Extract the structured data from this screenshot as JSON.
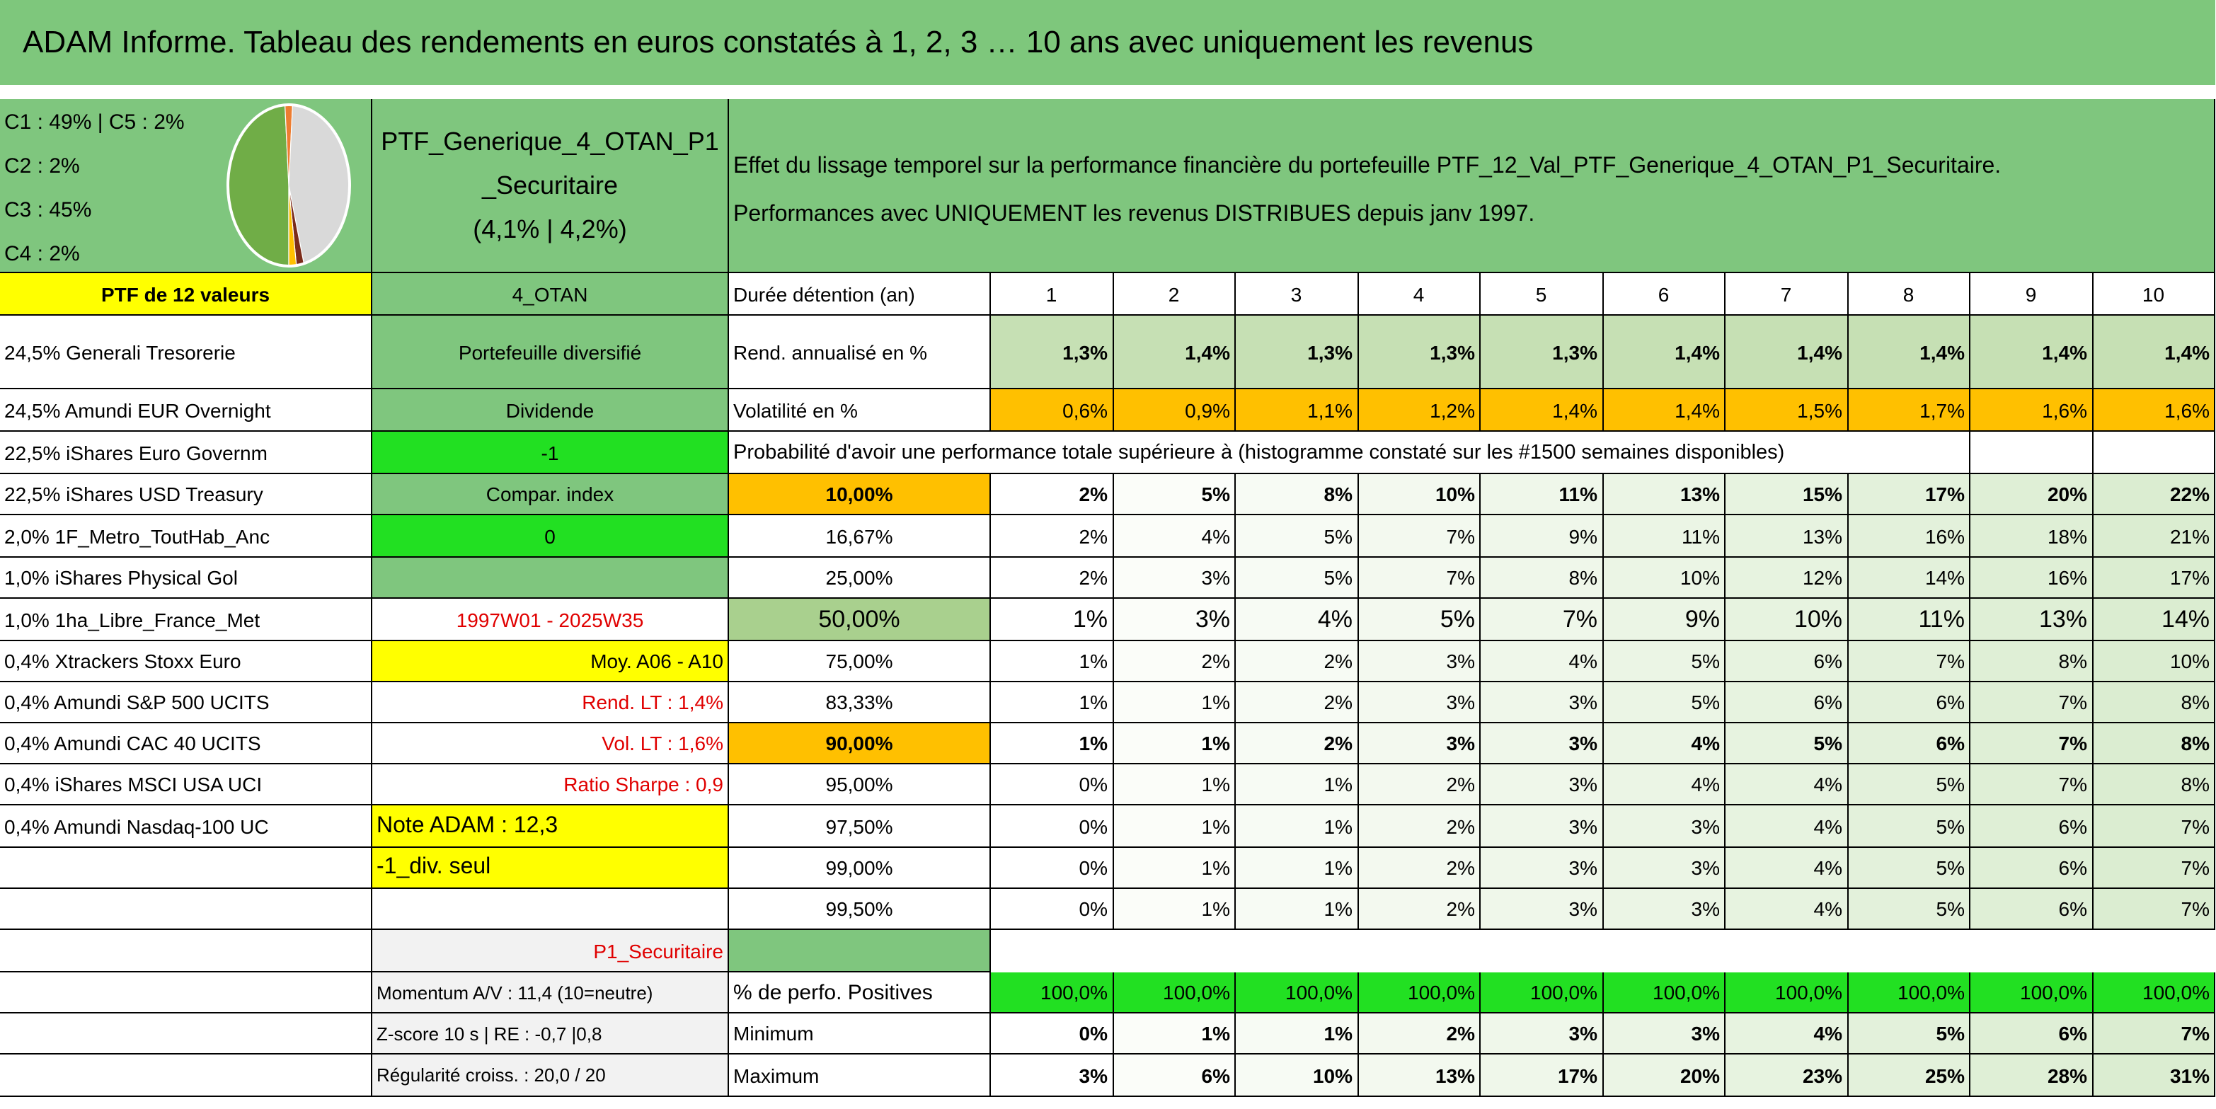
{
  "header": {
    "title": "ADAM Informe. Tableau des rendements en euros constatés à 1, 2, 3 … 10 ans avec uniquement les revenus"
  },
  "pie": {
    "legend": [
      "C1 : 49% | C5 : 2%",
      "C2 : 2%",
      "C3 : 45%",
      "C4 : 2%"
    ],
    "values": [
      49,
      2,
      45,
      2,
      2
    ],
    "colors": [
      "#70ad47",
      "#ed7d31",
      "#d9d9d9",
      "#7b2c1a",
      "#ffc000"
    ]
  },
  "portfolio": {
    "name_lines": [
      "PTF_Generique_4_OTAN_P1",
      "_Securitaire",
      "(4,1% | 4,2%)"
    ]
  },
  "description": [
    "Effet du lissage temporel sur la performance financière du portefeuille PTF_12_Val_PTF_Generique_4_OTAN_P1_Securitaire.",
    "Performances avec UNIQUEMENT les revenus DISTRIBUES depuis janv 1997."
  ],
  "table": {
    "rows": [
      [
        "PTF de 12 valeurs",
        "4_OTAN",
        "Durée détention (an)",
        "1",
        "2",
        "3",
        "4",
        "5",
        "6",
        "7",
        "8",
        "9",
        "10"
      ],
      [
        "24,5% Generali Tresorerie",
        "Portefeuille diversifié",
        "Rend. annualisé en %",
        "1,3%",
        "1,4%",
        "1,3%",
        "1,3%",
        "1,3%",
        "1,4%",
        "1,4%",
        "1,4%",
        "1,4%",
        "1,4%"
      ],
      [
        "24,5% Amundi EUR Overnight",
        "Dividende",
        "Volatilité en %",
        "0,6%",
        "0,9%",
        "1,1%",
        "1,2%",
        "1,4%",
        "1,4%",
        "1,5%",
        "1,7%",
        "1,6%",
        "1,6%"
      ],
      [
        "22,5% iShares Euro Governm",
        "-1",
        "Probabilité d'avoir une performance totale supérieure à (histogramme constaté sur les #1500 semaines disponibles)",
        null,
        null,
        null,
        null,
        null,
        null,
        null,
        null,
        null,
        null
      ],
      [
        "22,5% iShares USD Treasury",
        "Compar. index",
        "10,00%",
        "2%",
        "5%",
        "8%",
        "10%",
        "11%",
        "13%",
        "15%",
        "17%",
        "20%",
        "22%"
      ],
      [
        "2,0% 1F_Metro_ToutHab_Anc",
        "0",
        "16,67%",
        "2%",
        "4%",
        "5%",
        "7%",
        "9%",
        "11%",
        "13%",
        "16%",
        "18%",
        "21%"
      ],
      [
        "1,0% iShares Physical Gol",
        null,
        "25,00%",
        "2%",
        "3%",
        "5%",
        "7%",
        "8%",
        "10%",
        "12%",
        "14%",
        "16%",
        "17%"
      ],
      [
        "1,0% 1ha_Libre_France_Met",
        "1997W01 - 2025W35",
        "50,00%",
        "1%",
        "3%",
        "4%",
        "5%",
        "7%",
        "9%",
        "10%",
        "11%",
        "13%",
        "14%"
      ],
      [
        "0,4% Xtrackers Stoxx Euro",
        "Moy. A06 - A10",
        "75,00%",
        "1%",
        "2%",
        "2%",
        "3%",
        "4%",
        "5%",
        "6%",
        "7%",
        "8%",
        "10%"
      ],
      [
        "0,4% Amundi S&P 500 UCITS",
        "Rend. LT : 1,4%",
        "83,33%",
        "1%",
        "1%",
        "2%",
        "3%",
        "3%",
        "5%",
        "6%",
        "6%",
        "7%",
        "8%"
      ],
      [
        "0,4% Amundi CAC 40 UCITS",
        "Vol. LT : 1,6%",
        "90,00%",
        "1%",
        "1%",
        "2%",
        "3%",
        "3%",
        "4%",
        "5%",
        "6%",
        "7%",
        "8%"
      ],
      [
        "0,4% iShares MSCI USA UCI",
        "Ratio Sharpe : 0,9",
        "95,00%",
        "0%",
        "1%",
        "1%",
        "2%",
        "3%",
        "4%",
        "4%",
        "5%",
        "7%",
        "8%"
      ],
      [
        "0,4% Amundi Nasdaq-100 UC",
        "Note ADAM : 12,3",
        "97,50%",
        "0%",
        "1%",
        "1%",
        "2%",
        "3%",
        "3%",
        "4%",
        "5%",
        "6%",
        "7%"
      ],
      [
        null,
        "-1_div. seul",
        "99,00%",
        "0%",
        "1%",
        "1%",
        "2%",
        "3%",
        "3%",
        "4%",
        "5%",
        "6%",
        "7%"
      ],
      [
        null,
        null,
        "99,50%",
        "0%",
        "1%",
        "1%",
        "2%",
        "3%",
        "3%",
        "4%",
        "5%",
        "6%",
        "7%"
      ],
      [
        null,
        "P1_Securitaire",
        null,
        null,
        null,
        null,
        null,
        null,
        null,
        null,
        null,
        null,
        null
      ],
      [
        null,
        "Momentum A/V : 11,4 (10=neutre)",
        "% de perfo. Positives",
        "100,0%",
        "100,0%",
        "100,0%",
        "100,0%",
        "100,0%",
        "100,0%",
        "100,0%",
        "100,0%",
        "100,0%",
        "100,0%"
      ],
      [
        null,
        "Z-score 10 s | RE : -0,7 |0,8",
        "Minimum",
        "0%",
        "1%",
        "1%",
        "2%",
        "3%",
        "3%",
        "4%",
        "5%",
        "6%",
        "7%"
      ],
      [
        null,
        "Régularité croiss. : 20,0 / 20",
        "Maximum",
        "3%",
        "6%",
        "10%",
        "13%",
        "17%",
        "20%",
        "23%",
        "25%",
        "28%",
        "31%"
      ]
    ]
  }
}
